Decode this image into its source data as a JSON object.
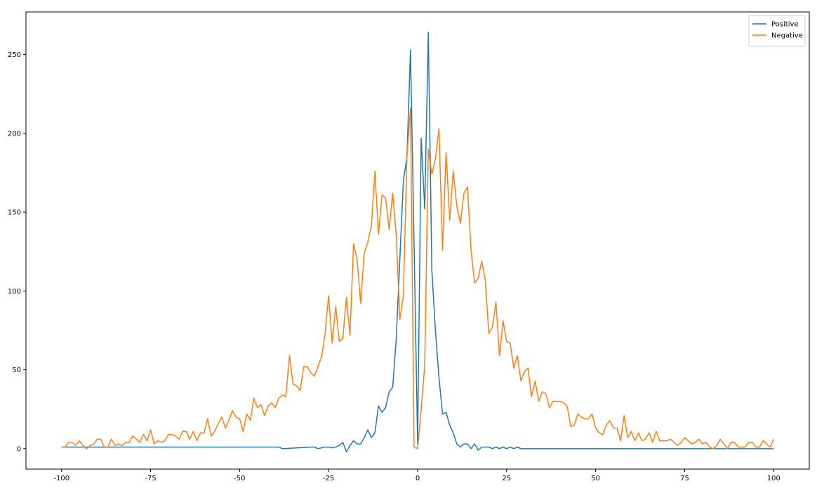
{
  "chart_data": {
    "type": "line",
    "xlim": [
      -110,
      110
    ],
    "ylim": [
      -13,
      277
    ],
    "xticks": [
      -100,
      -75,
      -50,
      -25,
      0,
      25,
      50,
      75,
      100
    ],
    "yticks": [
      0,
      50,
      100,
      150,
      200,
      250
    ],
    "legend": "upper right",
    "series": [
      {
        "name": "Positive",
        "color": "#1f77b4",
        "x": [
          -100,
          -39,
          -38,
          -30,
          -29,
          -28,
          -26,
          -25,
          -24,
          -23,
          -22,
          -21,
          -20,
          -19,
          -18,
          -17,
          -16,
          -15,
          -14,
          -13,
          -12,
          -11,
          -10,
          -9,
          -8,
          -7,
          -6,
          -5,
          -4,
          -3,
          -2,
          -1,
          0,
          1,
          2,
          3,
          4,
          5,
          6,
          7,
          8,
          9,
          10,
          11,
          12,
          13,
          14,
          15,
          16,
          17,
          18,
          19,
          20,
          21,
          22,
          23,
          24,
          25,
          26,
          27,
          28,
          29,
          100
        ],
        "values": [
          1,
          1,
          0,
          1,
          1,
          0,
          1,
          1,
          0.5,
          1,
          2,
          4,
          -2,
          2,
          5,
          3,
          3,
          7,
          12,
          7,
          10,
          27,
          23,
          26,
          36,
          39,
          70,
          120,
          170,
          185,
          253,
          130,
          3,
          197,
          152,
          264,
          113,
          75,
          45,
          22,
          23,
          15,
          10,
          3,
          1,
          3,
          3,
          0,
          3,
          -1,
          1,
          1,
          1,
          0,
          1,
          0,
          1,
          0,
          1,
          0,
          1,
          0,
          0
        ]
      },
      {
        "name": "Negative",
        "color": "#ff7f0e",
        "x": [
          -100,
          -99,
          -98,
          -97,
          -96,
          -95,
          -94,
          -93,
          -92,
          -91,
          -90,
          -89,
          -88,
          -87,
          -86,
          -85,
          -84,
          -83,
          -82,
          -81,
          -80,
          -79,
          -78,
          -77,
          -76,
          -75,
          -74,
          -73,
          -72,
          -71,
          -70,
          -69,
          -68,
          -67,
          -66,
          -65,
          -64,
          -63,
          -62,
          -61,
          -60,
          -59,
          -58,
          -57,
          -56,
          -55,
          -54,
          -53,
          -52,
          -51,
          -50,
          -49,
          -48,
          -47,
          -46,
          -45,
          -44,
          -43,
          -42,
          -41,
          -40,
          -39,
          -38,
          -37,
          -36,
          -35,
          -34,
          -33,
          -32,
          -31,
          -30,
          -29,
          -28,
          -27,
          -26,
          -25,
          -24,
          -23,
          -22,
          -21,
          -20,
          -19,
          -18,
          -17,
          -16,
          -15,
          -14,
          -13,
          -12,
          -11,
          -10,
          -9,
          -8,
          -7,
          -6,
          -5,
          -4,
          -3,
          -2,
          -1,
          0,
          1,
          2,
          3,
          4,
          5,
          6,
          7,
          8,
          9,
          10,
          11,
          12,
          13,
          14,
          15,
          16,
          17,
          18,
          19,
          20,
          21,
          22,
          23,
          24,
          25,
          26,
          27,
          28,
          29,
          30,
          31,
          32,
          33,
          34,
          35,
          36,
          37,
          38,
          39,
          40,
          41,
          42,
          43,
          44,
          45,
          46,
          47,
          48,
          49,
          50,
          51,
          52,
          53,
          54,
          55,
          56,
          57,
          58,
          59,
          60,
          61,
          62,
          63,
          64,
          65,
          66,
          67,
          68,
          69,
          70,
          71,
          72,
          73,
          74,
          75,
          76,
          77,
          78,
          79,
          80,
          81,
          82,
          83,
          84,
          85,
          86,
          87,
          88,
          89,
          90,
          91,
          92,
          93,
          94,
          95,
          96,
          97,
          98,
          99,
          100
        ],
        "values": [
          1,
          1,
          4,
          4,
          2,
          5,
          2,
          0,
          2,
          3,
          6,
          6,
          1,
          1,
          6,
          2,
          3,
          2,
          4,
          4,
          8,
          6,
          4,
          9,
          5,
          12,
          3,
          5,
          4,
          5,
          9,
          9,
          8,
          6,
          11,
          11,
          6,
          11,
          5,
          10,
          10,
          19,
          8,
          11,
          16,
          20,
          13,
          18,
          24,
          20,
          19,
          11,
          22,
          18,
          32,
          26,
          28,
          21,
          27,
          29,
          26,
          32,
          34,
          33,
          59,
          41,
          40,
          37,
          52,
          52,
          48,
          46,
          52,
          58,
          73,
          97,
          67,
          90,
          68,
          70,
          96,
          72,
          130,
          120,
          92,
          124,
          131,
          141,
          176,
          136,
          161,
          159,
          139,
          162,
          135,
          82,
          97,
          185,
          216,
          1,
          0,
          25,
          53,
          190,
          174,
          184,
          203,
          126,
          188,
          145,
          176,
          154,
          143,
          162,
          166,
          126,
          105,
          108,
          119,
          107,
          73,
          77,
          93,
          59,
          81,
          68,
          67,
          51,
          59,
          43,
          49,
          51,
          33,
          43,
          30,
          36,
          35,
          26,
          30,
          30,
          30,
          29,
          27,
          14,
          15,
          22,
          20,
          19,
          19,
          22,
          13,
          10,
          9,
          15,
          18,
          13,
          13,
          5,
          21,
          7,
          11,
          5,
          10,
          5,
          6,
          10,
          4,
          11,
          5,
          5,
          5,
          6,
          4,
          2,
          4,
          7,
          5,
          3,
          4,
          6,
          3,
          4,
          1,
          0,
          2,
          6,
          3,
          0,
          4,
          4,
          1,
          1,
          1,
          4,
          4,
          1,
          1,
          5,
          3,
          1,
          6
        ]
      }
    ]
  }
}
